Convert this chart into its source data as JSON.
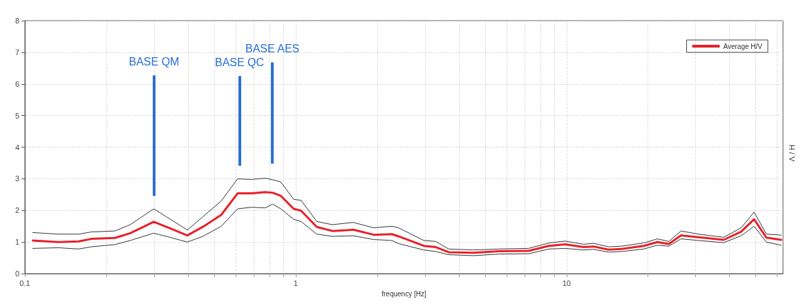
{
  "chart_data": {
    "type": "line",
    "xlabel": "frequency [Hz]",
    "ylabel": "H / V",
    "x": [
      0.107,
      0.133,
      0.158,
      0.176,
      0.215,
      0.245,
      0.299,
      0.333,
      0.398,
      0.454,
      0.531,
      0.61,
      0.688,
      0.772,
      0.822,
      0.881,
      0.983,
      1.047,
      1.196,
      1.365,
      1.631,
      1.94,
      2.265,
      2.399,
      2.97,
      3.29,
      3.67,
      4.54,
      5.62,
      7.24,
      8.61,
      9.89,
      11.55,
      12.59,
      14.29,
      15.94,
      19.28,
      21.63,
      23.86,
      26.46,
      30.72,
      38.02,
      44.16,
      49.26,
      54.64,
      61.99
    ],
    "series": [
      {
        "color": "#333333",
        "values": [
          1.3,
          1.25,
          1.25,
          1.32,
          1.35,
          1.55,
          2.05,
          1.8,
          1.38,
          1.8,
          2.3,
          3.0,
          2.98,
          3.02,
          2.97,
          2.9,
          2.35,
          2.32,
          1.65,
          1.55,
          1.62,
          1.45,
          1.5,
          1.45,
          1.05,
          1.02,
          0.78,
          0.75,
          0.78,
          0.8,
          0.97,
          1.03,
          0.93,
          0.96,
          0.85,
          0.87,
          0.97,
          1.1,
          1.02,
          1.35,
          1.25,
          1.15,
          1.45,
          1.95,
          1.25,
          1.22
        ]
      },
      {
        "color": "#333333",
        "values": [
          0.8,
          0.82,
          0.78,
          0.85,
          0.92,
          1.05,
          1.28,
          1.18,
          1.0,
          1.18,
          1.5,
          2.05,
          2.1,
          2.08,
          2.2,
          2.05,
          1.72,
          1.65,
          1.25,
          1.18,
          1.2,
          1.08,
          1.05,
          0.95,
          0.75,
          0.7,
          0.6,
          0.57,
          0.62,
          0.63,
          0.78,
          0.8,
          0.75,
          0.77,
          0.68,
          0.7,
          0.78,
          0.9,
          0.87,
          1.1,
          1.05,
          0.98,
          1.2,
          1.5,
          1.0,
          0.9
        ]
      },
      {
        "name": "Average H/V",
        "color": "#e8202a",
        "values": [
          1.05,
          1.0,
          1.02,
          1.1,
          1.13,
          1.28,
          1.64,
          1.48,
          1.21,
          1.48,
          1.86,
          2.54,
          2.54,
          2.58,
          2.56,
          2.46,
          2.05,
          1.99,
          1.48,
          1.35,
          1.39,
          1.23,
          1.25,
          1.18,
          0.88,
          0.84,
          0.68,
          0.66,
          0.71,
          0.72,
          0.88,
          0.93,
          0.84,
          0.86,
          0.76,
          0.78,
          0.88,
          1.0,
          0.94,
          1.21,
          1.15,
          1.07,
          1.33,
          1.72,
          1.14,
          1.07
        ]
      }
    ],
    "ref_lines": [
      {
        "axis": "x",
        "value": 0.3,
        "label": "BASE QM",
        "color": "#2a6fd6"
      },
      {
        "axis": "x",
        "value": 0.62,
        "label": "BASE QC",
        "color": "#2a6fd6"
      },
      {
        "axis": "x",
        "value": 0.82,
        "label": "BASE AES",
        "color": "#2a6fd6"
      }
    ],
    "log": "x",
    "xlim": [
      0.1,
      63
    ],
    "xticks": [
      0.1,
      {
        "value": 0.2,
        "label": null
      },
      {
        "value": 0.3,
        "label": null
      },
      {
        "value": 0.4,
        "label": null
      },
      {
        "value": 0.5,
        "label": null
      },
      {
        "value": 0.6,
        "label": null
      },
      {
        "value": 0.7,
        "label": null
      },
      {
        "value": 0.8,
        "label": null
      },
      {
        "value": 0.9,
        "label": null
      },
      1,
      {
        "value": 2,
        "label": null
      },
      {
        "value": 3,
        "label": null
      },
      {
        "value": 4,
        "label": null
      },
      {
        "value": 5,
        "label": null
      },
      {
        "value": 6,
        "label": null
      },
      {
        "value": 7,
        "label": null
      },
      {
        "value": 8,
        "label": null
      },
      {
        "value": 9,
        "label": null
      },
      10,
      {
        "value": 20,
        "label": null
      },
      {
        "value": 30,
        "label": null
      },
      {
        "value": 40,
        "label": null
      },
      {
        "value": 50,
        "label": null
      },
      {
        "value": 60,
        "label": null
      }
    ],
    "ylim": [
      0,
      8
    ],
    "yticks": [
      0,
      1,
      2,
      3,
      4,
      5,
      6,
      7,
      8
    ],
    "grid": true,
    "legend": "top right",
    "marker": "none",
    "line_style": "solid"
  }
}
